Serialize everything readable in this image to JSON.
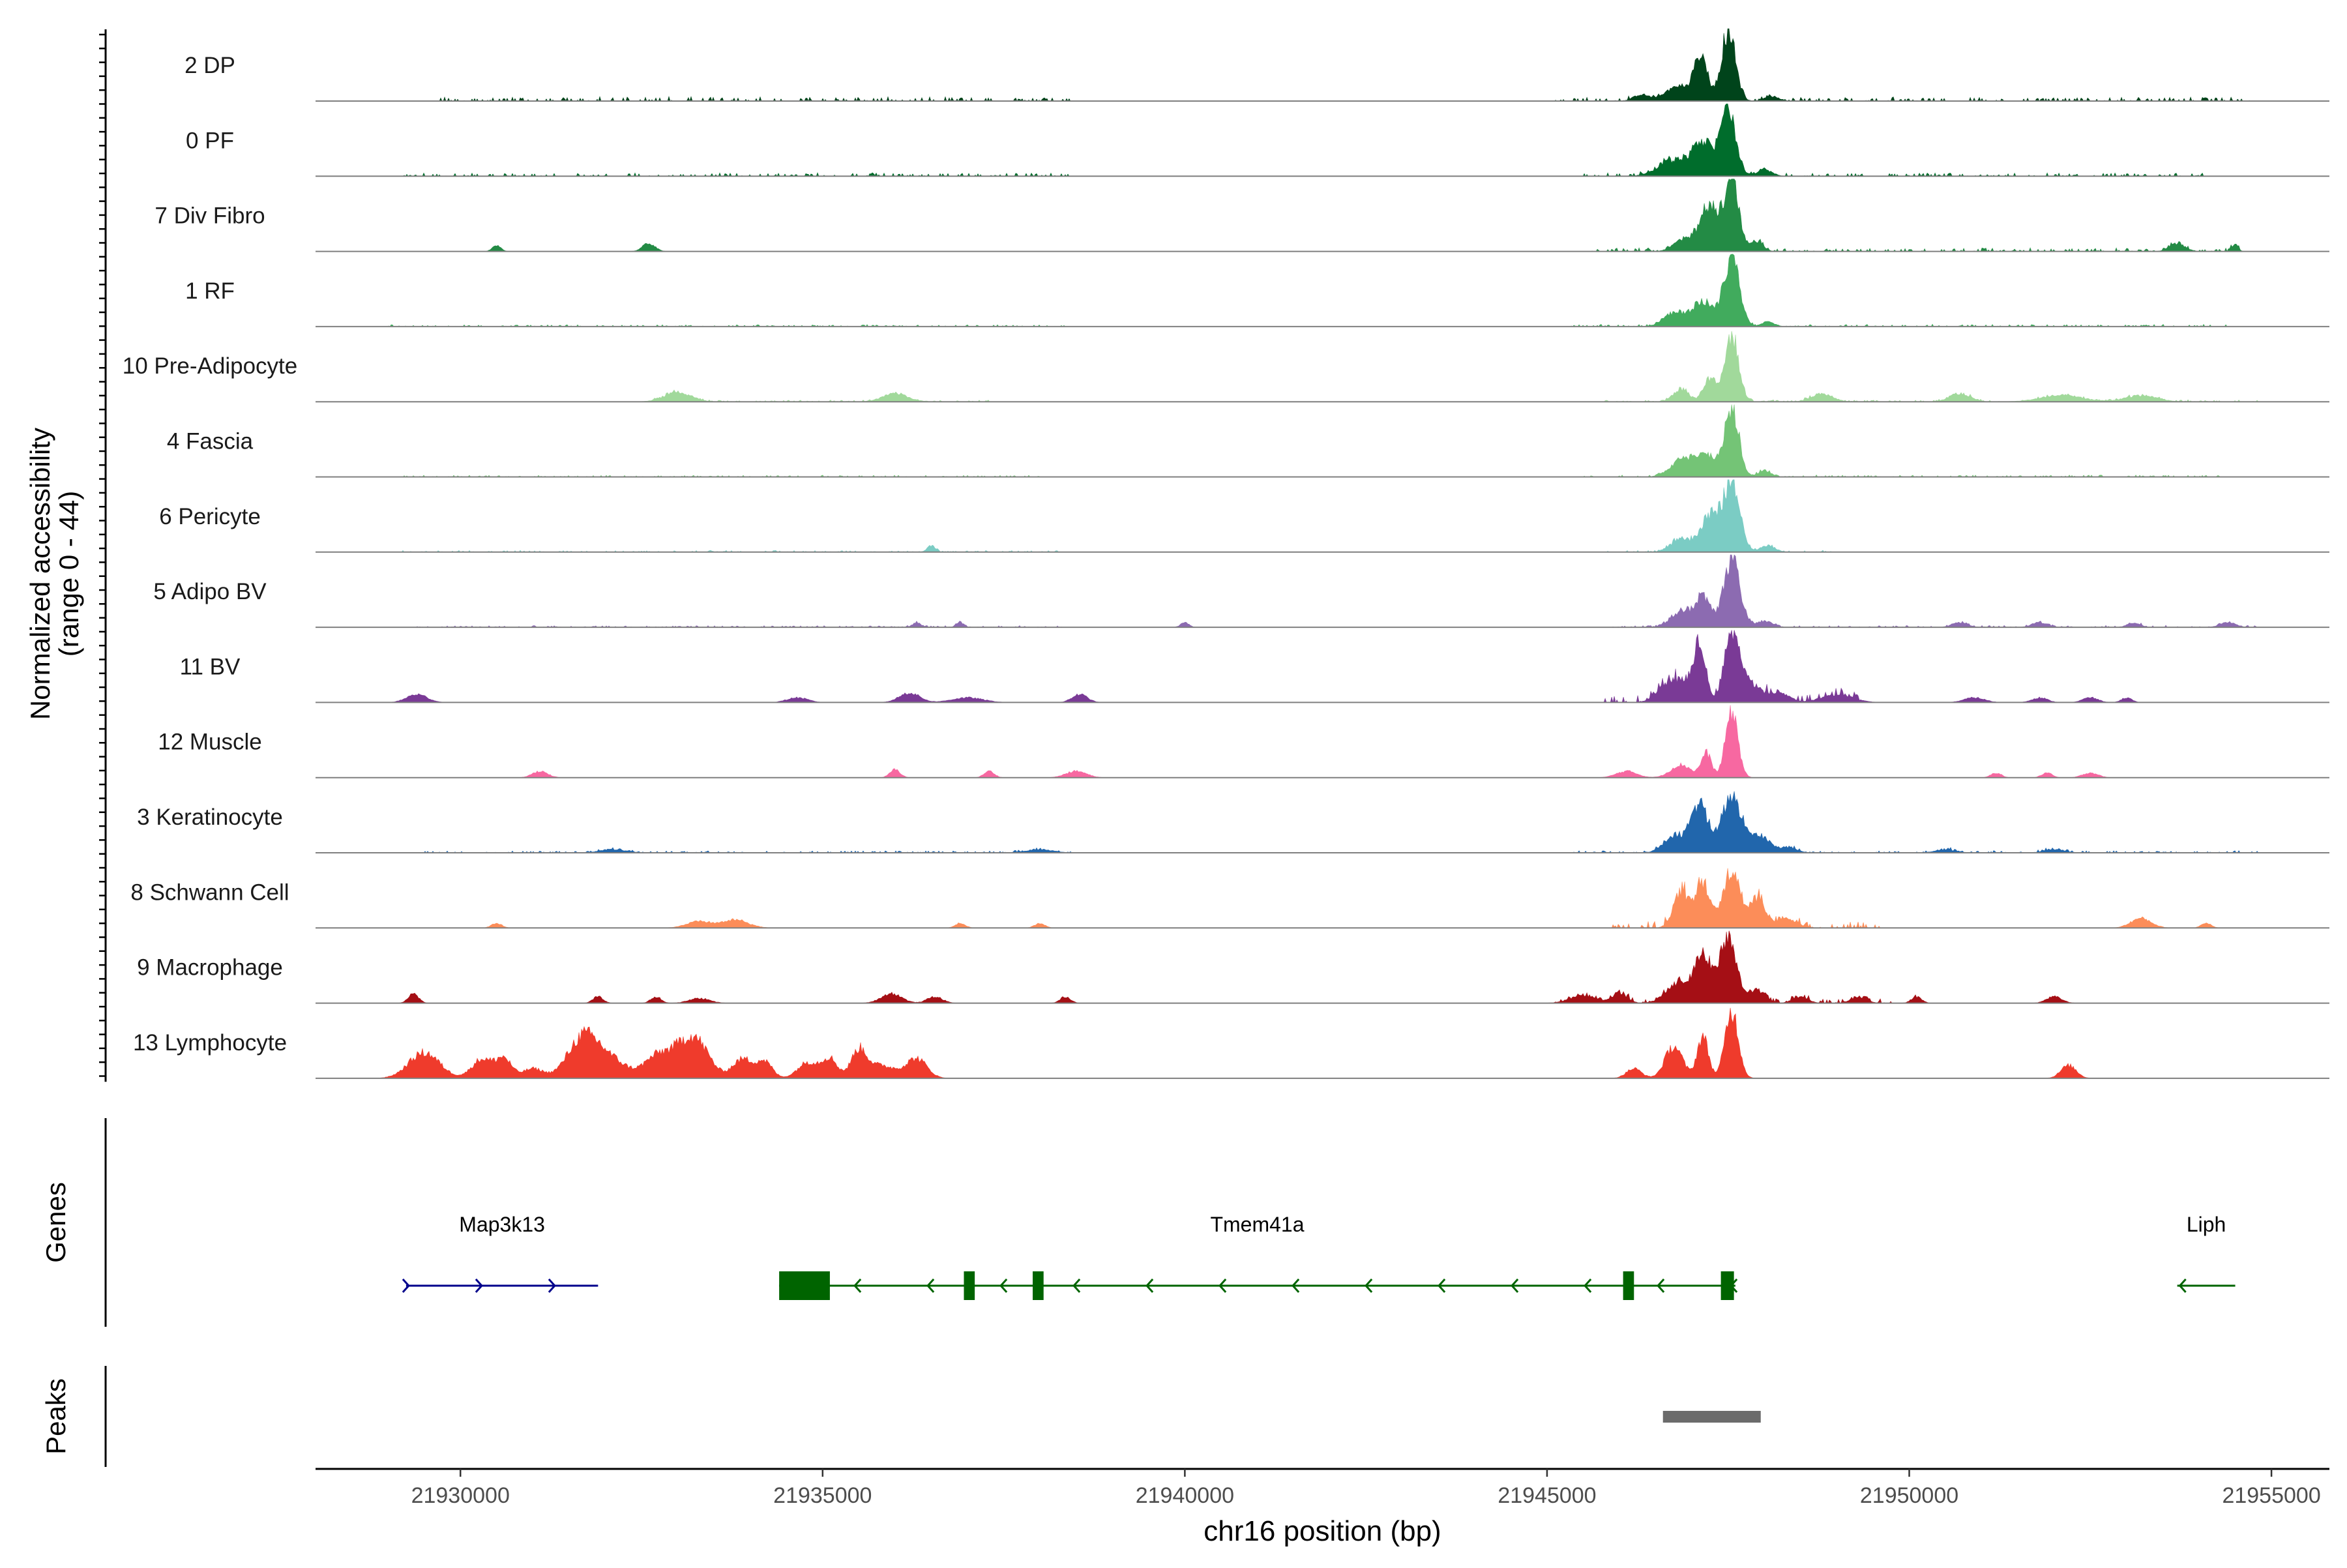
{
  "chart_data": {
    "type": "area",
    "chromosome": "chr16",
    "xlabel": "chr16 position (bp)",
    "ylabel_line1": "Normalized accessibility",
    "ylabel_line2": "(range 0 - 44)",
    "y_range": [
      0,
      44
    ],
    "xlim": [
      21928000,
      21955800
    ],
    "x_ticks": [
      21930000,
      21935000,
      21940000,
      21945000,
      21950000,
      21955000
    ],
    "x_tick_labels": [
      "21930000",
      "21935000",
      "21940000",
      "21945000",
      "21950000",
      "21955000"
    ],
    "tracks": [
      {
        "name": "2 DP",
        "color": "#00441b",
        "peaks": [
          [
            21947500,
            42,
            140
          ],
          [
            21947120,
            26,
            130
          ],
          [
            21946800,
            9,
            240
          ],
          [
            21946300,
            4,
            150
          ],
          [
            21948100,
            3,
            140
          ]
        ],
        "background": [
          [
            21929700,
            21938500,
            1.6
          ],
          [
            21945100,
            21954700,
            1.4
          ]
        ]
      },
      {
        "name": "0 PF",
        "color": "#006d2c",
        "peaks": [
          [
            21947500,
            42,
            150
          ],
          [
            21947150,
            20,
            190
          ],
          [
            21946750,
            10,
            300
          ],
          [
            21948000,
            4,
            150
          ]
        ],
        "background": [
          [
            21929200,
            21938400,
            1.2
          ],
          [
            21945500,
            21954200,
            1.2
          ]
        ]
      },
      {
        "name": "7 Div Fibro",
        "color": "#238b45",
        "peaks": [
          [
            21947550,
            42,
            140
          ],
          [
            21947250,
            28,
            180
          ],
          [
            21946900,
            8,
            200
          ],
          [
            21947900,
            6,
            120
          ],
          [
            21930500,
            4,
            80
          ],
          [
            21932600,
            5,
            120
          ],
          [
            21953700,
            5,
            150
          ],
          [
            21954500,
            4,
            60
          ]
        ],
        "background": [
          [
            21945600,
            21954600,
            1.3
          ]
        ]
      },
      {
        "name": "1 RF",
        "color": "#41ab5d",
        "peaks": [
          [
            21947550,
            42,
            150
          ],
          [
            21947150,
            15,
            230
          ],
          [
            21946750,
            8,
            200
          ],
          [
            21948050,
            3,
            120
          ]
        ],
        "background": [
          [
            21929000,
            21938500,
            0.7
          ],
          [
            21945300,
            21954400,
            0.8
          ]
        ]
      },
      {
        "name": "10 Pre-Adipocyte",
        "color": "#a1d99b",
        "peaks": [
          [
            21947550,
            42,
            130
          ],
          [
            21947250,
            15,
            120
          ],
          [
            21946850,
            8,
            150
          ],
          [
            21933000,
            6,
            260
          ],
          [
            21936000,
            5,
            250
          ],
          [
            21948800,
            5,
            200
          ],
          [
            21950700,
            5,
            200
          ],
          [
            21952100,
            4,
            400
          ],
          [
            21953200,
            4,
            300
          ]
        ],
        "background": [
          [
            21932500,
            21937300,
            0.6
          ],
          [
            21945800,
            21954900,
            0.7
          ]
        ]
      },
      {
        "name": "4 Fascia",
        "color": "#74c476",
        "peaks": [
          [
            21947550,
            42,
            140
          ],
          [
            21947150,
            15,
            250
          ],
          [
            21946800,
            7,
            200
          ],
          [
            21948000,
            4,
            120
          ]
        ],
        "background": [
          [
            21929200,
            21938000,
            0.6
          ],
          [
            21945500,
            21954300,
            0.7
          ]
        ]
      },
      {
        "name": "6 Pericyte",
        "color": "#7bccc4",
        "peaks": [
          [
            21947550,
            42,
            160
          ],
          [
            21947250,
            22,
            190
          ],
          [
            21946850,
            8,
            200
          ],
          [
            21948050,
            4,
            140
          ],
          [
            21936500,
            4,
            80
          ]
        ],
        "background": [
          [
            21929200,
            21938300,
            0.6
          ],
          [
            21945800,
            21949000,
            0.7
          ]
        ]
      },
      {
        "name": "5 Adipo BV",
        "color": "#8c6bb1",
        "peaks": [
          [
            21947550,
            42,
            160
          ],
          [
            21947150,
            18,
            150
          ],
          [
            21946850,
            10,
            200
          ],
          [
            21948000,
            4,
            150
          ],
          [
            21936300,
            3,
            80
          ],
          [
            21936900,
            3,
            70
          ],
          [
            21940000,
            3,
            80
          ],
          [
            21950700,
            3,
            150
          ],
          [
            21951800,
            3,
            150
          ],
          [
            21953100,
            3,
            120
          ],
          [
            21954400,
            3,
            150
          ]
        ],
        "background": [
          [
            21929300,
            21938300,
            0.6
          ],
          [
            21945800,
            21954800,
            0.7
          ]
        ]
      },
      {
        "name": "11 BV",
        "color": "#7a3a96",
        "peaks": [
          [
            21947550,
            42,
            140
          ],
          [
            21947100,
            36,
            120
          ],
          [
            21946750,
            15,
            250
          ],
          [
            21947800,
            12,
            200
          ],
          [
            21948200,
            6,
            200
          ],
          [
            21949000,
            5,
            300
          ],
          [
            21929400,
            5,
            200
          ],
          [
            21936200,
            6,
            200
          ],
          [
            21938550,
            5,
            150
          ],
          [
            21934650,
            3,
            200
          ],
          [
            21937000,
            3,
            300
          ],
          [
            21950900,
            3,
            200
          ],
          [
            21951800,
            3,
            150
          ],
          [
            21952500,
            3,
            150
          ],
          [
            21953000,
            3,
            100
          ]
        ],
        "background": [
          [
            21945800,
            21949300,
            2.5
          ]
        ]
      },
      {
        "name": "12 Muscle",
        "color": "#f768a1",
        "peaks": [
          [
            21947550,
            42,
            120
          ],
          [
            21947200,
            15,
            100
          ],
          [
            21946850,
            8,
            200
          ],
          [
            21931100,
            4,
            150
          ],
          [
            21936000,
            5,
            100
          ],
          [
            21937300,
            4,
            100
          ],
          [
            21938500,
            4,
            200
          ],
          [
            21946100,
            4,
            200
          ],
          [
            21951200,
            3,
            100
          ],
          [
            21951900,
            3,
            100
          ],
          [
            21952500,
            3,
            150
          ]
        ],
        "background": []
      },
      {
        "name": "3 Keratinocyte",
        "color": "#2166ac",
        "peaks": [
          [
            21947550,
            34,
            200
          ],
          [
            21947100,
            30,
            170
          ],
          [
            21946750,
            10,
            200
          ],
          [
            21947950,
            10,
            200
          ],
          [
            21948350,
            3,
            150
          ],
          [
            21932100,
            2,
            250
          ],
          [
            21938000,
            2,
            250
          ],
          [
            21950500,
            2,
            200
          ],
          [
            21952000,
            2,
            200
          ]
        ],
        "background": [
          [
            21929500,
            21938500,
            0.7
          ],
          [
            21945300,
            21954900,
            0.8
          ]
        ]
      },
      {
        "name": "8 Schwann Cell",
        "color": "#fc8d59",
        "peaks": [
          [
            21947550,
            36,
            160
          ],
          [
            21947150,
            26,
            150
          ],
          [
            21946850,
            22,
            150
          ],
          [
            21947900,
            18,
            150
          ],
          [
            21948300,
            6,
            200
          ],
          [
            21930500,
            3,
            100
          ],
          [
            21933300,
            4,
            250
          ],
          [
            21933800,
            5,
            250
          ],
          [
            21936900,
            3,
            100
          ],
          [
            21938000,
            3,
            100
          ],
          [
            21953200,
            6,
            200
          ],
          [
            21954100,
            3,
            100
          ]
        ],
        "background": [
          [
            21945900,
            21949600,
            2.5
          ]
        ]
      },
      {
        "name": "9 Macrophage",
        "color": "#a50f15",
        "peaks": [
          [
            21947500,
            42,
            160
          ],
          [
            21947150,
            28,
            170
          ],
          [
            21946800,
            12,
            230
          ],
          [
            21947900,
            8,
            150
          ],
          [
            21929350,
            6,
            100
          ],
          [
            21931900,
            4,
            100
          ],
          [
            21932700,
            4,
            100
          ],
          [
            21933300,
            3,
            200
          ],
          [
            21935950,
            6,
            200
          ],
          [
            21936550,
            4,
            150
          ],
          [
            21938350,
            4,
            100
          ],
          [
            21945500,
            5,
            250
          ],
          [
            21946000,
            6,
            150
          ],
          [
            21948500,
            4,
            150
          ],
          [
            21949300,
            4,
            150
          ],
          [
            21950100,
            4,
            100
          ],
          [
            21952000,
            4,
            150
          ]
        ],
        "background": [
          [
            21945100,
            21950200,
            1.5
          ]
        ]
      },
      {
        "name": "13 Lymphocyte",
        "color": "#ef3b2c",
        "peaks": [
          [
            21947550,
            42,
            130
          ],
          [
            21947150,
            26,
            110
          ],
          [
            21946750,
            20,
            170
          ],
          [
            21946200,
            6,
            150
          ],
          [
            21929500,
            16,
            300
          ],
          [
            21930300,
            12,
            200
          ],
          [
            21930600,
            12,
            150
          ],
          [
            21931000,
            6,
            200
          ],
          [
            21931700,
            26,
            300
          ],
          [
            21932100,
            10,
            300
          ],
          [
            21932700,
            12,
            250
          ],
          [
            21933100,
            18,
            300
          ],
          [
            21933300,
            12,
            250
          ],
          [
            21933900,
            12,
            200
          ],
          [
            21934200,
            10,
            150
          ],
          [
            21934800,
            10,
            200
          ],
          [
            21935100,
            12,
            150
          ],
          [
            21935500,
            16,
            150
          ],
          [
            21935800,
            8,
            300
          ],
          [
            21936300,
            12,
            200
          ],
          [
            21952200,
            8,
            150
          ]
        ],
        "background": []
      }
    ],
    "genes_label": "Genes",
    "genes": [
      {
        "name": "Map3k13",
        "start": 21929250,
        "end": 21931900,
        "strand": "+",
        "color": "#00008b",
        "exons": []
      },
      {
        "name": "Tmem41a",
        "start": 21934400,
        "end": 21947600,
        "strand": "-",
        "color": "#006400",
        "exons": [
          [
            21934400,
            21935100
          ],
          [
            21936950,
            21937100
          ],
          [
            21937900,
            21938050
          ],
          [
            21946050,
            21946200
          ],
          [
            21947400,
            21947580
          ]
        ]
      },
      {
        "name": "Liph",
        "start": 21953700,
        "end": 21954500,
        "strand": "-",
        "color": "#006400",
        "exons": []
      }
    ],
    "peaks_label": "Peaks",
    "peak_regions": [
      [
        21946600,
        21947950
      ]
    ],
    "peak_color": "#6b6b6b"
  }
}
